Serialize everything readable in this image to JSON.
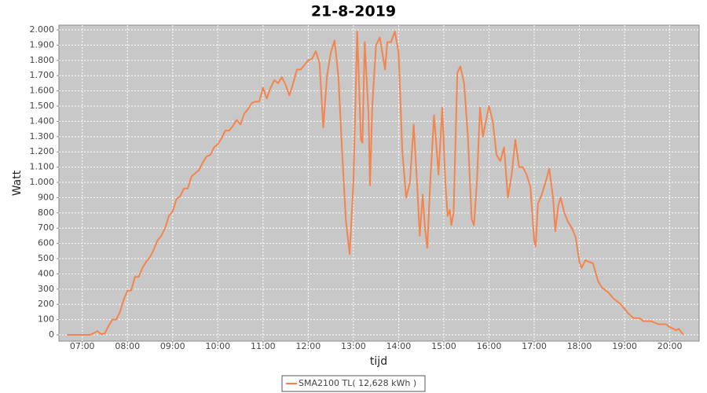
{
  "chart_data": {
    "type": "line",
    "title": "21-8-2019",
    "x_label": "tijd",
    "y_label": "Watt",
    "x": [
      "06:40",
      "06:50",
      "07:00",
      "07:10",
      "07:15",
      "07:20",
      "07:25",
      "07:30",
      "07:35",
      "07:40",
      "07:45",
      "07:50",
      "07:55",
      "08:00",
      "08:05",
      "08:10",
      "08:15",
      "08:20",
      "08:25",
      "08:30",
      "08:35",
      "08:40",
      "08:45",
      "08:50",
      "08:55",
      "09:00",
      "09:05",
      "09:10",
      "09:15",
      "09:20",
      "09:25",
      "09:30",
      "09:35",
      "09:40",
      "09:45",
      "09:50",
      "09:55",
      "10:00",
      "10:05",
      "10:10",
      "10:15",
      "10:20",
      "10:25",
      "10:30",
      "10:35",
      "10:40",
      "10:45",
      "10:50",
      "10:55",
      "11:00",
      "11:05",
      "11:10",
      "11:15",
      "11:20",
      "11:25",
      "11:30",
      "11:35",
      "11:40",
      "11:45",
      "11:50",
      "11:55",
      "12:00",
      "12:05",
      "12:10",
      "12:15",
      "12:20",
      "12:25",
      "12:30",
      "12:35",
      "12:40",
      "12:45",
      "12:50",
      "12:55",
      "13:00",
      "13:05",
      "13:10",
      "13:12",
      "13:15",
      "13:20",
      "13:22",
      "13:25",
      "13:30",
      "13:35",
      "13:40",
      "13:42",
      "13:45",
      "13:50",
      "13:55",
      "14:00",
      "14:05",
      "14:10",
      "14:15",
      "14:20",
      "14:25",
      "14:28",
      "14:32",
      "14:35",
      "14:38",
      "14:42",
      "14:47",
      "14:50",
      "14:53",
      "14:58",
      "15:02",
      "15:05",
      "15:08",
      "15:10",
      "15:13",
      "15:18",
      "15:22",
      "15:27",
      "15:32",
      "15:37",
      "15:40",
      "15:44",
      "15:48",
      "15:52",
      "15:55",
      "16:00",
      "16:05",
      "16:10",
      "16:15",
      "16:20",
      "16:25",
      "16:30",
      "16:35",
      "16:40",
      "16:45",
      "16:50",
      "16:55",
      "17:00",
      "17:02",
      "17:05",
      "17:10",
      "17:15",
      "17:20",
      "17:25",
      "17:28",
      "17:32",
      "17:35",
      "17:40",
      "17:45",
      "17:50",
      "17:55",
      "18:00",
      "18:03",
      "18:08",
      "18:12",
      "18:18",
      "18:25",
      "18:30",
      "18:38",
      "18:45",
      "18:55",
      "19:05",
      "19:12",
      "19:20",
      "19:25",
      "19:35",
      "19:45",
      "19:55",
      "20:00",
      "20:05",
      "20:08",
      "20:12",
      "20:15",
      "20:18"
    ],
    "series": [
      {
        "name": "SMA2100 TL( 12,628 kWh )",
        "color": "#f5844c",
        "values": [
          0,
          0,
          0,
          0,
          10,
          25,
          5,
          10,
          60,
          100,
          100,
          150,
          230,
          290,
          290,
          380,
          380,
          440,
          480,
          510,
          560,
          620,
          650,
          700,
          780,
          810,
          890,
          910,
          960,
          960,
          1040,
          1060,
          1080,
          1130,
          1170,
          1180,
          1230,
          1250,
          1290,
          1340,
          1340,
          1370,
          1410,
          1380,
          1450,
          1480,
          1520,
          1530,
          1530,
          1620,
          1550,
          1620,
          1670,
          1650,
          1690,
          1640,
          1570,
          1650,
          1740,
          1740,
          1770,
          1800,
          1810,
          1860,
          1780,
          1360,
          1700,
          1850,
          1930,
          1700,
          1200,
          750,
          530,
          1000,
          1990,
          1280,
          1260,
          1920,
          1450,
          980,
          1500,
          1900,
          1950,
          1800,
          1740,
          1920,
          1920,
          1990,
          1850,
          1200,
          900,
          1000,
          1380,
          950,
          650,
          920,
          700,
          570,
          1000,
          1440,
          1250,
          1050,
          1490,
          1000,
          780,
          820,
          720,
          800,
          1720,
          1760,
          1650,
          1300,
          760,
          720,
          1000,
          1490,
          1300,
          1380,
          1500,
          1400,
          1180,
          1140,
          1230,
          900,
          1050,
          1280,
          1100,
          1100,
          1050,
          970,
          620,
          580,
          860,
          920,
          1000,
          1090,
          900,
          680,
          850,
          900,
          800,
          740,
          700,
          640,
          480,
          440,
          490,
          480,
          470,
          350,
          310,
          280,
          240,
          200,
          140,
          110,
          110,
          90,
          90,
          70,
          70,
          50,
          40,
          30,
          40,
          20,
          0
        ]
      }
    ],
    "xlim": [
      "06:29",
      "20:39"
    ],
    "xticks": [
      "07:00",
      "08:00",
      "09:00",
      "10:00",
      "11:00",
      "12:00",
      "13:00",
      "14:00",
      "15:00",
      "16:00",
      "17:00",
      "18:00",
      "19:00",
      "20:00"
    ],
    "ylim": [
      -41,
      2031
    ],
    "yticks": [
      0,
      100,
      200,
      300,
      400,
      500,
      600,
      700,
      800,
      900,
      {
        "value": 1000,
        "label": "1.000"
      },
      {
        "value": 1100,
        "label": "1.100"
      },
      {
        "value": 1200,
        "label": "1.200"
      },
      {
        "value": 1300,
        "label": "1.300"
      },
      {
        "value": 1400,
        "label": "1.400"
      },
      {
        "value": 1500,
        "label": "1.500"
      },
      {
        "value": 1600,
        "label": "1.600"
      },
      {
        "value": 1700,
        "label": "1.700"
      },
      {
        "value": 1800,
        "label": "1.800"
      },
      {
        "value": 1900,
        "label": "1.900"
      },
      {
        "value": 2000,
        "label": "2.000"
      }
    ],
    "grid": true
  }
}
